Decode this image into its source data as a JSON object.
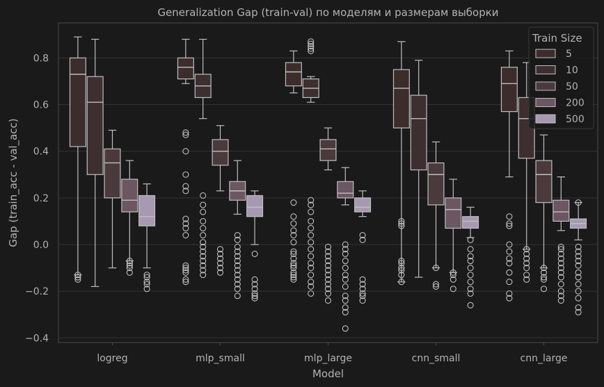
{
  "chart_data": {
    "type": "box",
    "title": "Generalization Gap (train-val) по моделям и размерам выборки",
    "xlabel": "Model",
    "ylabel": "Gap (train_acc - val_acc)",
    "ylim": [
      -0.42,
      0.95
    ],
    "yticks": [
      -0.4,
      -0.2,
      0.0,
      0.2,
      0.4,
      0.6,
      0.8
    ],
    "ytick_labels": [
      "−0.4",
      "−0.2",
      "0.0",
      "0.2",
      "0.4",
      "0.6",
      "0.8"
    ],
    "grid": true,
    "categories": [
      "logreg",
      "mlp_small",
      "mlp_large",
      "cnn_small",
      "cnn_large"
    ],
    "legend": {
      "title": "Train Size",
      "position": "top-right",
      "entries": [
        "5",
        "10",
        "50",
        "200",
        "500"
      ]
    },
    "series_colors": [
      "#3c2c2c",
      "#3d2f30",
      "#4a3a3c",
      "#6b5662",
      "#a899b3"
    ],
    "series": [
      {
        "name": "5",
        "boxes": [
          {
            "whislo": -0.13,
            "q1": 0.42,
            "med": 0.73,
            "q3": 0.8,
            "whishi": 0.89,
            "fliers": [
              -0.13,
              -0.14,
              -0.15
            ]
          },
          {
            "whislo": 0.69,
            "q1": 0.71,
            "med": 0.76,
            "q3": 0.8,
            "whishi": 0.88,
            "fliers": [
              0.48,
              0.47,
              0.4,
              0.3,
              0.25,
              0.23,
              0.11,
              0.09,
              0.07,
              0.04,
              -0.09,
              -0.1,
              -0.11,
              -0.12,
              -0.15,
              -0.16
            ]
          },
          {
            "whislo": 0.65,
            "q1": 0.68,
            "med": 0.74,
            "q3": 0.78,
            "whishi": 0.83,
            "fliers": [
              0.18,
              0.12,
              0.09,
              0.06,
              0.04,
              0.01,
              -0.03,
              -0.04,
              -0.06,
              -0.08,
              -0.09,
              -0.1,
              -0.12,
              -0.13,
              -0.14,
              -0.15
            ]
          },
          {
            "whislo": -0.16,
            "q1": 0.5,
            "med": 0.67,
            "q3": 0.75,
            "whishi": 0.87,
            "fliers": [
              0.1,
              0.09,
              0.08,
              -0.07,
              -0.08,
              -0.1,
              -0.11,
              -0.13,
              -0.16
            ]
          },
          {
            "whislo": 0.29,
            "q1": 0.57,
            "med": 0.69,
            "q3": 0.76,
            "whishi": 0.83,
            "fliers": [
              0.12,
              0.09,
              0.08,
              0.0,
              -0.03,
              -0.06,
              -0.08,
              -0.12,
              -0.16,
              -0.21,
              -0.23
            ]
          }
        ]
      },
      {
        "name": "10",
        "boxes": [
          {
            "whislo": -0.18,
            "q1": 0.3,
            "med": 0.61,
            "q3": 0.72,
            "whishi": 0.88,
            "fliers": []
          },
          {
            "whislo": 0.54,
            "q1": 0.63,
            "med": 0.68,
            "q3": 0.73,
            "whishi": 0.88,
            "fliers": [
              0.21,
              0.17,
              0.14,
              0.1,
              0.07,
              0.04,
              0.01,
              -0.01,
              -0.03,
              -0.05,
              -0.07,
              -0.09,
              -0.11,
              -0.13
            ]
          },
          {
            "whislo": 0.61,
            "q1": 0.63,
            "med": 0.67,
            "q3": 0.71,
            "whishi": 0.72,
            "fliers": [
              0.87,
              0.86,
              0.85,
              0.84,
              0.83,
              0.19,
              0.17,
              0.14,
              0.1,
              0.07,
              0.04,
              0.01,
              -0.02,
              -0.05,
              -0.08,
              -0.1,
              -0.13,
              -0.16,
              -0.18,
              -0.21
            ]
          },
          {
            "whislo": -0.14,
            "q1": 0.32,
            "med": 0.54,
            "q3": 0.64,
            "whishi": 0.79,
            "fliers": []
          },
          {
            "whislo": -0.02,
            "q1": 0.37,
            "med": 0.54,
            "q3": 0.63,
            "whishi": 0.78,
            "fliers": [
              -0.02,
              -0.04,
              -0.06,
              -0.08,
              -0.1,
              -0.13,
              -0.15
            ]
          }
        ]
      },
      {
        "name": "50",
        "boxes": [
          {
            "whislo": -0.1,
            "q1": 0.2,
            "med": 0.35,
            "q3": 0.41,
            "whishi": 0.49,
            "fliers": []
          },
          {
            "whislo": 0.23,
            "q1": 0.34,
            "med": 0.4,
            "q3": 0.45,
            "whishi": 0.51,
            "fliers": [
              -0.02,
              -0.04,
              -0.06,
              -0.08,
              -0.1,
              -0.12
            ]
          },
          {
            "whislo": 0.32,
            "q1": 0.36,
            "med": 0.41,
            "q3": 0.45,
            "whishi": 0.5,
            "fliers": [
              -0.01,
              -0.03,
              -0.05,
              -0.07,
              -0.09,
              -0.11,
              -0.13,
              -0.15,
              -0.17,
              -0.19,
              -0.21,
              -0.24
            ]
          },
          {
            "whislo": -0.1,
            "q1": 0.17,
            "med": 0.3,
            "q3": 0.35,
            "whishi": 0.44,
            "fliers": [
              -0.1,
              -0.17,
              -0.18
            ]
          },
          {
            "whislo": -0.1,
            "q1": 0.18,
            "med": 0.3,
            "q3": 0.36,
            "whishi": 0.47,
            "fliers": [
              -0.1,
              -0.12,
              -0.14,
              -0.15,
              -0.19
            ]
          }
        ]
      },
      {
        "name": "200",
        "boxes": [
          {
            "whislo": -0.07,
            "q1": 0.14,
            "med": 0.19,
            "q3": 0.28,
            "whishi": 0.36,
            "fliers": [
              -0.07,
              -0.08,
              -0.09,
              -0.1,
              -0.12
            ]
          },
          {
            "whislo": 0.13,
            "q1": 0.19,
            "med": 0.23,
            "q3": 0.27,
            "whishi": 0.36,
            "fliers": [
              0.04,
              0.02,
              -0.01,
              -0.03,
              -0.05,
              -0.07,
              -0.09,
              -0.11,
              -0.13,
              -0.15,
              -0.17,
              -0.19,
              -0.22
            ]
          },
          {
            "whislo": 0.17,
            "q1": 0.2,
            "med": 0.22,
            "q3": 0.27,
            "whishi": 0.33,
            "fliers": [
              0.0,
              -0.02,
              -0.04,
              -0.07,
              -0.1,
              -0.13,
              -0.15,
              -0.18,
              -0.22,
              -0.24,
              -0.27,
              -0.29,
              -0.36
            ]
          },
          {
            "whislo": -0.12,
            "q1": 0.07,
            "med": 0.15,
            "q3": 0.2,
            "whishi": 0.28,
            "fliers": [
              -0.12,
              -0.13,
              -0.15,
              -0.19
            ]
          },
          {
            "whislo": 0.06,
            "q1": 0.1,
            "med": 0.14,
            "q3": 0.19,
            "whishi": 0.29,
            "fliers": [
              -0.01,
              -0.02,
              -0.04,
              -0.06,
              -0.08,
              -0.1,
              -0.12,
              -0.14,
              -0.17,
              -0.2,
              -0.22,
              -0.24
            ]
          }
        ]
      },
      {
        "name": "500",
        "boxes": [
          {
            "whislo": -0.1,
            "q1": 0.08,
            "med": 0.12,
            "q3": 0.21,
            "whishi": 0.26,
            "fliers": [
              -0.13,
              -0.14,
              -0.16,
              -0.17,
              -0.19
            ]
          },
          {
            "whislo": 0.0,
            "q1": 0.12,
            "med": 0.16,
            "q3": 0.21,
            "whishi": 0.23,
            "fliers": [
              -0.04,
              -0.15,
              -0.17,
              -0.19,
              -0.21,
              -0.22,
              -0.23
            ]
          },
          {
            "whislo": 0.12,
            "q1": 0.14,
            "med": 0.16,
            "q3": 0.2,
            "whishi": 0.23,
            "fliers": [
              0.04,
              0.02,
              -0.15,
              -0.17,
              -0.19,
              -0.21,
              -0.22,
              -0.24
            ]
          },
          {
            "whislo": 0.03,
            "q1": 0.07,
            "med": 0.1,
            "q3": 0.12,
            "whishi": 0.16,
            "fliers": [
              0.02,
              -0.02,
              -0.05,
              -0.07,
              -0.1,
              -0.13,
              -0.16,
              -0.19,
              -0.21,
              -0.26
            ]
          },
          {
            "whislo": 0.02,
            "q1": 0.07,
            "med": 0.09,
            "q3": 0.11,
            "whishi": 0.18,
            "fliers": [
              0.18,
              -0.01,
              -0.03,
              -0.05,
              -0.07,
              -0.09,
              -0.12,
              -0.14,
              -0.17,
              -0.2,
              -0.23,
              -0.27,
              -0.29
            ]
          }
        ]
      }
    ]
  }
}
